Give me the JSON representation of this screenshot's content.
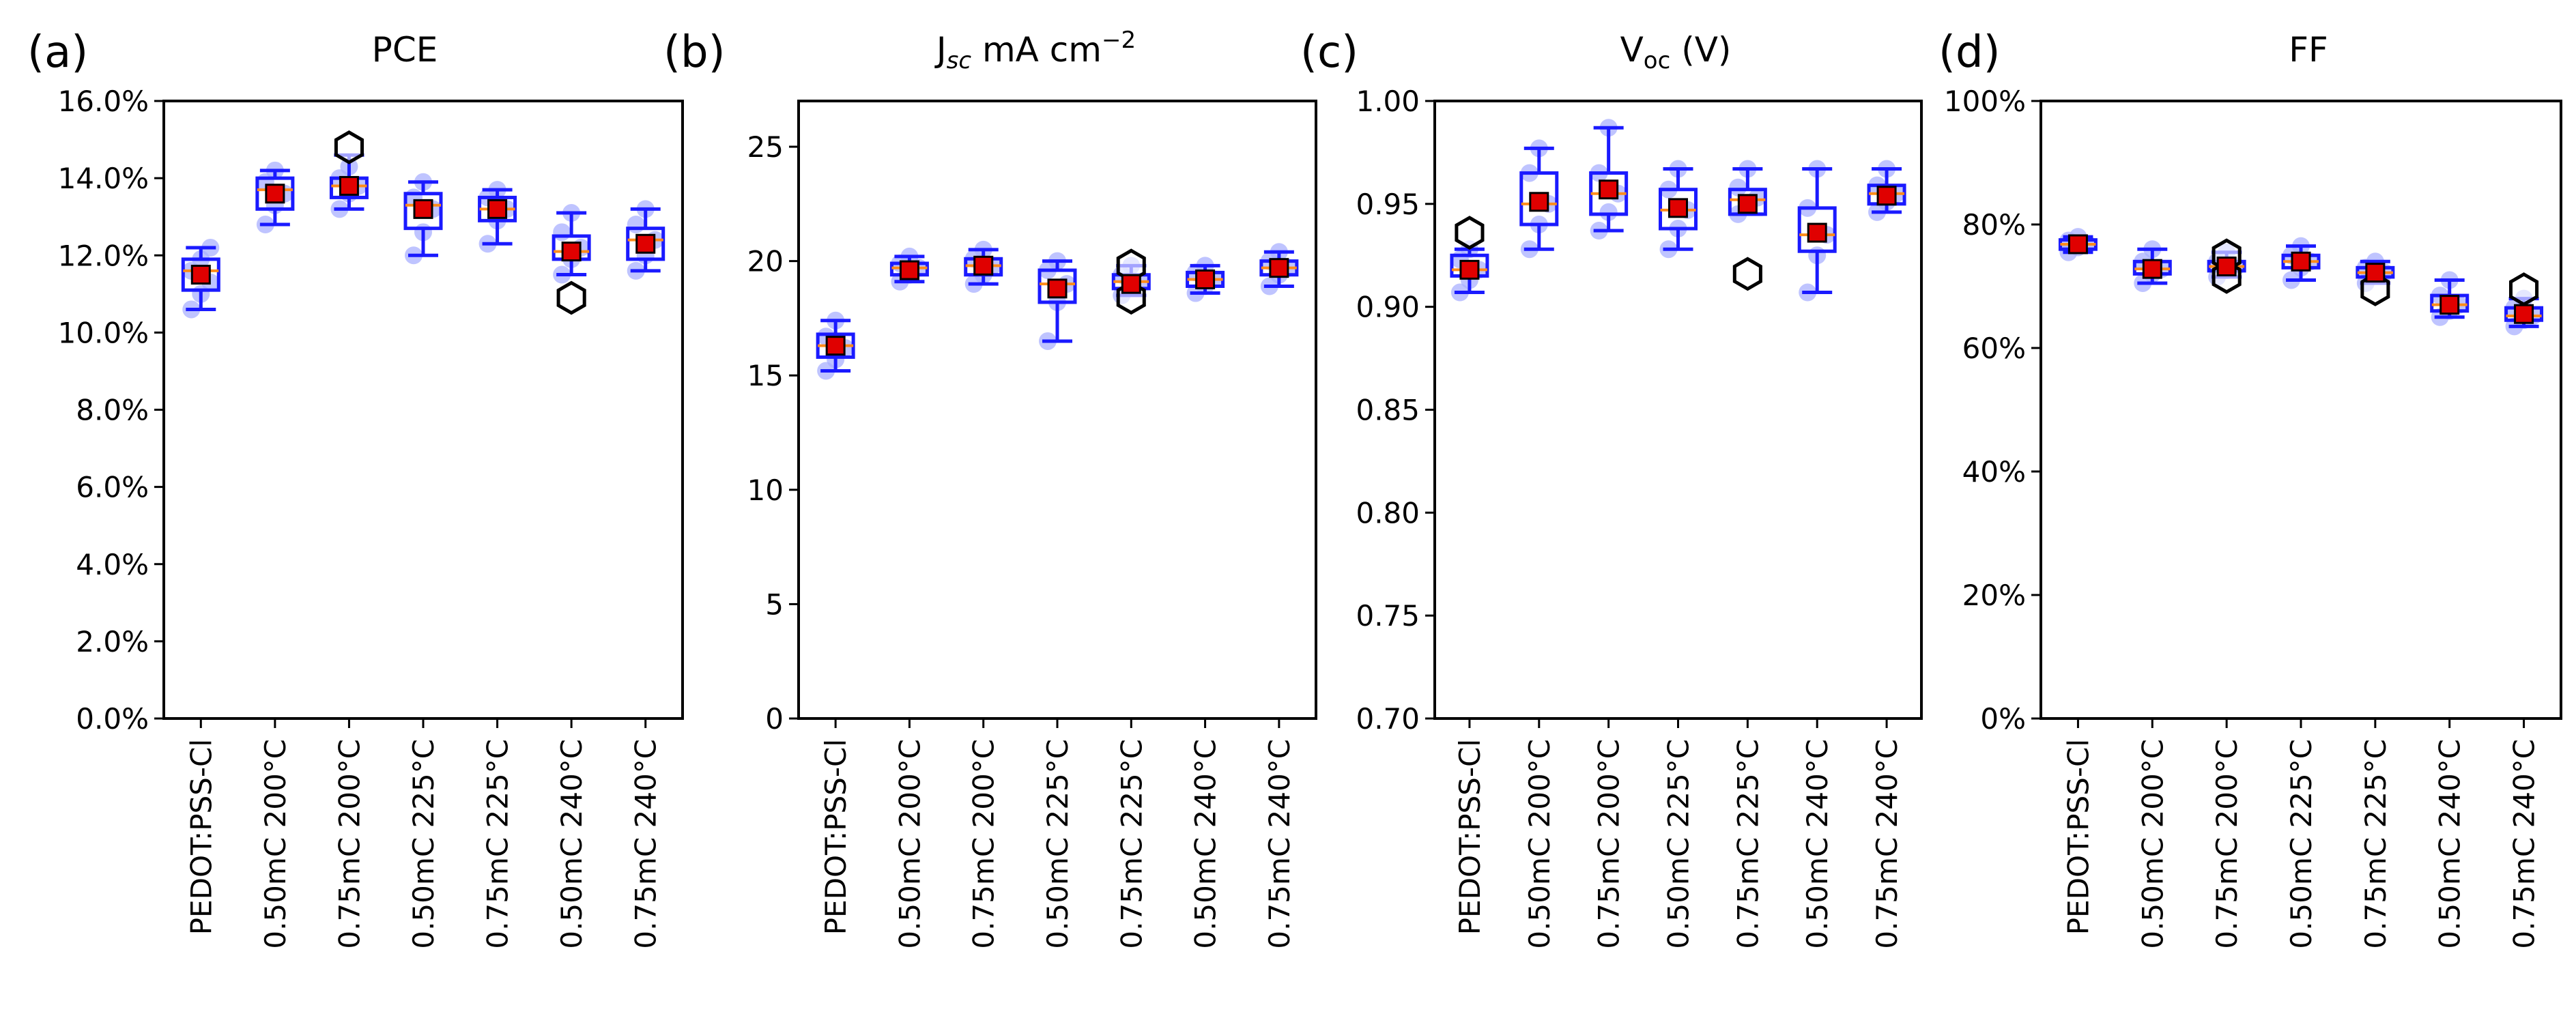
{
  "categories": [
    "PEDOT:PSS-Cl",
    "0.50mC 200°C",
    "0.75mC 200°C",
    "0.50mC 225°C",
    "0.75mC 225°C",
    "0.50mC 240°C",
    "0.75mC 240°C"
  ],
  "colors": {
    "box": "#1a1aff",
    "mean": "#e00000",
    "median": "#ff8c1a",
    "points": "#aab0ff",
    "outlier": "#000000",
    "axis": "#000000"
  },
  "chart_data": [
    {
      "type": "box",
      "panel": "(a)",
      "title": "PCE",
      "ylim": [
        0,
        16
      ],
      "yticks": [
        0,
        2,
        4,
        6,
        8,
        10,
        12,
        14,
        16
      ],
      "yticklabels": [
        "0.0%",
        "2.0%",
        "4.0%",
        "6.0%",
        "8.0%",
        "10.0%",
        "12.0%",
        "14.0%",
        "16.0%"
      ],
      "categories": [
        "PEDOT:PSS-Cl",
        "0.50mC 200°C",
        "0.75mC 200°C",
        "0.50mC 225°C",
        "0.75mC 225°C",
        "0.50mC 240°C",
        "0.75mC 240°C"
      ],
      "q1": [
        11.1,
        13.2,
        13.5,
        12.7,
        12.9,
        11.9,
        11.9
      ],
      "median": [
        11.6,
        13.7,
        13.8,
        13.3,
        13.2,
        12.1,
        12.4
      ],
      "q3": [
        11.9,
        14.0,
        14.0,
        13.6,
        13.5,
        12.5,
        12.7
      ],
      "whisker_low": [
        10.6,
        12.8,
        13.2,
        12.0,
        12.3,
        11.5,
        11.6
      ],
      "whisker_high": [
        12.2,
        14.2,
        14.6,
        13.9,
        13.7,
        13.1,
        13.2
      ],
      "mean": [
        11.5,
        13.6,
        13.8,
        13.2,
        13.2,
        12.1,
        12.3
      ],
      "outliers": [
        [],
        [],
        [
          14.8
        ],
        [],
        [],
        [
          10.9
        ],
        []
      ],
      "points": [
        [
          10.6,
          11.0,
          11.3,
          11.6,
          11.9,
          12.2
        ],
        [
          12.8,
          13.3,
          13.6,
          13.9,
          14.2
        ],
        [
          13.2,
          13.6,
          13.8,
          14.0,
          14.3
        ],
        [
          12.0,
          12.6,
          13.2,
          13.5,
          13.9
        ],
        [
          12.3,
          12.9,
          13.2,
          13.5,
          13.7
        ],
        [
          11.5,
          11.9,
          12.2,
          12.6,
          13.1
        ],
        [
          11.6,
          12.0,
          12.4,
          12.8,
          13.2
        ]
      ]
    },
    {
      "type": "box",
      "panel": "(b)",
      "title": "J",
      "title_sub": "sc",
      "title_unit": " mA cm",
      "title_sup": "−2",
      "ylim": [
        0,
        27
      ],
      "yticks": [
        0,
        5,
        10,
        15,
        20,
        25
      ],
      "yticklabels": [
        "0",
        "5",
        "10",
        "15",
        "20",
        "25"
      ],
      "categories": [
        "PEDOT:PSS-Cl",
        "0.50mC 200°C",
        "0.75mC 200°C",
        "0.50mC 225°C",
        "0.75mC 225°C",
        "0.50mC 240°C",
        "0.75mC 240°C"
      ],
      "q1": [
        15.8,
        19.4,
        19.4,
        18.2,
        18.8,
        18.9,
        19.4
      ],
      "median": [
        16.3,
        19.7,
        19.8,
        19.0,
        19.1,
        19.2,
        19.7
      ],
      "q3": [
        16.8,
        19.9,
        20.1,
        19.6,
        19.4,
        19.5,
        20.0
      ],
      "whisker_low": [
        15.2,
        19.1,
        19.0,
        16.5,
        18.5,
        18.6,
        18.9
      ],
      "whisker_high": [
        17.4,
        20.2,
        20.5,
        20.0,
        19.8,
        19.8,
        20.4
      ],
      "mean": [
        16.3,
        19.6,
        19.8,
        18.8,
        19.0,
        19.2,
        19.7
      ],
      "outliers": [
        [],
        [],
        [],
        [],
        [
          19.8,
          18.4
        ],
        [],
        []
      ],
      "points": [
        [
          15.2,
          15.7,
          16.2,
          16.7,
          17.4
        ],
        [
          19.1,
          19.4,
          19.7,
          19.9,
          20.2
        ],
        [
          19.0,
          19.4,
          19.8,
          20.1,
          20.5
        ],
        [
          16.5,
          18.2,
          19.0,
          19.6,
          20.0
        ],
        [
          18.5,
          18.9,
          19.1,
          19.4,
          19.8
        ],
        [
          18.6,
          18.9,
          19.2,
          19.5,
          19.8
        ],
        [
          18.9,
          19.4,
          19.7,
          20.0,
          20.4
        ]
      ]
    },
    {
      "type": "box",
      "panel": "(c)",
      "title": "V",
      "title_sub": "oc",
      "title_unit": " (V)",
      "ylim": [
        0.7,
        1.0
      ],
      "yticks": [
        0.7,
        0.75,
        0.8,
        0.85,
        0.9,
        0.95,
        1.0
      ],
      "yticklabels": [
        "0.70",
        "0.75",
        "0.80",
        "0.85",
        "0.90",
        "0.95",
        "1.00"
      ],
      "categories": [
        "PEDOT:PSS-Cl",
        "0.50mC 200°C",
        "0.75mC 200°C",
        "0.50mC 225°C",
        "0.75mC 225°C",
        "0.50mC 240°C",
        "0.75mC 240°C"
      ],
      "q1": [
        0.915,
        0.94,
        0.945,
        0.938,
        0.945,
        0.927,
        0.95
      ],
      "median": [
        0.918,
        0.95,
        0.955,
        0.947,
        0.952,
        0.935,
        0.955
      ],
      "q3": [
        0.925,
        0.965,
        0.965,
        0.957,
        0.957,
        0.948,
        0.959
      ],
      "whisker_low": [
        0.907,
        0.928,
        0.937,
        0.928,
        0.945,
        0.907,
        0.946
      ],
      "whisker_high": [
        0.928,
        0.977,
        0.987,
        0.967,
        0.967,
        0.967,
        0.967
      ],
      "mean": [
        0.918,
        0.951,
        0.957,
        0.948,
        0.95,
        0.936,
        0.954
      ],
      "outliers": [
        [
          0.936
        ],
        [],
        [],
        [],
        [
          0.916
        ],
        [],
        []
      ],
      "points": [
        [
          0.907,
          0.913,
          0.918,
          0.923,
          0.928
        ],
        [
          0.928,
          0.94,
          0.95,
          0.965,
          0.977
        ],
        [
          0.937,
          0.946,
          0.955,
          0.965,
          0.987
        ],
        [
          0.928,
          0.938,
          0.947,
          0.957,
          0.967
        ],
        [
          0.945,
          0.95,
          0.953,
          0.958,
          0.967
        ],
        [
          0.907,
          0.925,
          0.935,
          0.948,
          0.967
        ],
        [
          0.946,
          0.951,
          0.955,
          0.959,
          0.967
        ]
      ]
    },
    {
      "type": "box",
      "panel": "(d)",
      "title": "FF",
      "ylim": [
        0,
        100
      ],
      "yticks": [
        0,
        20,
        40,
        60,
        80,
        100
      ],
      "yticklabels": [
        "0%",
        "20%",
        "40%",
        "60%",
        "80%",
        "100%"
      ],
      "categories": [
        "PEDOT:PSS-Cl",
        "0.50mC 200°C",
        "0.75mC 200°C",
        "0.50mC 225°C",
        "0.75mC 225°C",
        "0.50mC 240°C",
        "0.75mC 240°C"
      ],
      "q1": [
        76.0,
        72.0,
        72.5,
        73.0,
        71.5,
        66.0,
        64.5
      ],
      "median": [
        76.8,
        72.8,
        73.2,
        74.0,
        72.2,
        67.0,
        65.2
      ],
      "q3": [
        77.5,
        74.0,
        74.0,
        75.0,
        73.0,
        68.5,
        66.5
      ],
      "whisker_low": [
        75.5,
        70.5,
        71.5,
        71.0,
        70.5,
        65.0,
        63.5
      ],
      "whisker_high": [
        78.0,
        76.0,
        75.5,
        76.5,
        74.0,
        71.0,
        68.0
      ],
      "mean": [
        76.8,
        72.8,
        73.2,
        74.0,
        72.2,
        67.0,
        65.5
      ],
      "outliers": [
        [],
        [],
        [
          75.0,
          71.5
        ],
        [],
        [
          69.5
        ],
        [],
        [
          69.5
        ]
      ],
      "points": [
        [
          75.5,
          76.3,
          76.8,
          77.4,
          78.0
        ],
        [
          70.5,
          72.0,
          72.8,
          74.0,
          76.0
        ],
        [
          71.5,
          72.6,
          73.2,
          74.0,
          75.5
        ],
        [
          71.0,
          73.0,
          74.0,
          75.0,
          76.5
        ],
        [
          70.5,
          71.8,
          72.2,
          73.0,
          74.0
        ],
        [
          65.0,
          66.0,
          67.0,
          68.5,
          71.0
        ],
        [
          63.5,
          64.5,
          65.2,
          66.5,
          68.0
        ]
      ]
    }
  ]
}
